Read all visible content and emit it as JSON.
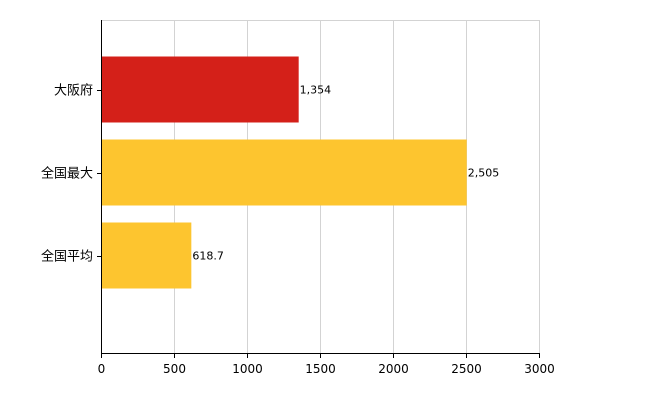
{
  "chart_data": {
    "type": "bar",
    "orientation": "horizontal",
    "title": "",
    "xlabel": "",
    "ylabel": "",
    "categories": [
      "大阪府",
      "全国最大",
      "全国平均"
    ],
    "values": [
      1354,
      2505,
      618.7
    ],
    "value_labels": [
      "1,354",
      "2,505",
      "618.7"
    ],
    "bar_colors": [
      "#d42019",
      "#fdc52f",
      "#fdc52f"
    ],
    "xlim": [
      0,
      3000
    ],
    "x_ticks": [
      0,
      500,
      1000,
      1500,
      2000,
      2500,
      3000
    ],
    "x_tick_labels": [
      "0",
      "500",
      "1000",
      "1500",
      "2000",
      "2500",
      "3000"
    ],
    "grid": true,
    "legend": false
  }
}
